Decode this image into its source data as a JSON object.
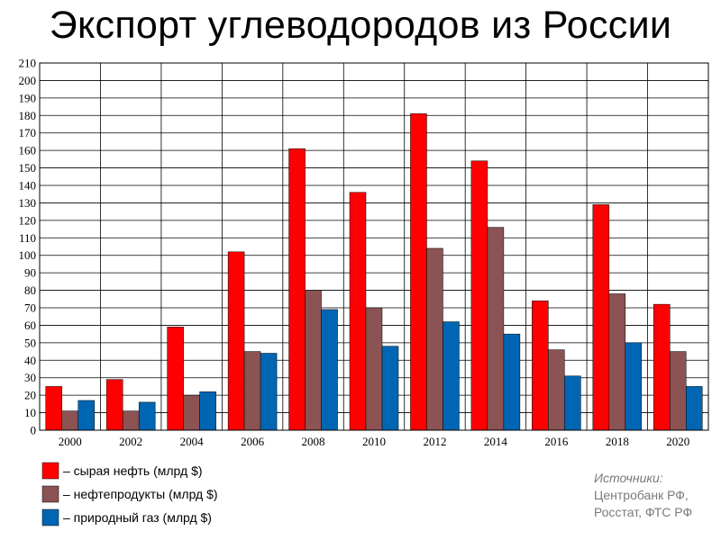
{
  "chart_data": {
    "type": "bar",
    "title": "Экспорт углеводородов из России",
    "categories": [
      "2000",
      "2002",
      "2004",
      "2006",
      "2008",
      "2010",
      "2012",
      "2014",
      "2016",
      "2018",
      "2020"
    ],
    "series": [
      {
        "name": "– сырая нефть (млрд $)",
        "color": "#ff0000",
        "values": [
          25,
          29,
          59,
          102,
          161,
          136,
          181,
          154,
          74,
          129,
          72
        ]
      },
      {
        "name": "– нефтепродукты (млрд $)",
        "color": "#8b5353",
        "values": [
          11,
          11,
          20,
          45,
          80,
          70,
          104,
          116,
          46,
          78,
          45
        ]
      },
      {
        "name": "– природный газ (млрд $)",
        "color": "#0066b3",
        "values": [
          17,
          16,
          22,
          44,
          69,
          48,
          62,
          55,
          31,
          50,
          25
        ]
      }
    ],
    "ylim": [
      0,
      210
    ],
    "yticks": [
      0,
      10,
      20,
      30,
      40,
      50,
      60,
      70,
      80,
      90,
      100,
      110,
      120,
      130,
      140,
      150,
      160,
      170,
      180,
      190,
      200,
      210
    ],
    "grid": true,
    "legend_position": "bottom-left"
  },
  "sources": {
    "title": "Источники:",
    "lines": [
      "Центробанк РФ,",
      "Росстат, ФТС РФ"
    ]
  }
}
